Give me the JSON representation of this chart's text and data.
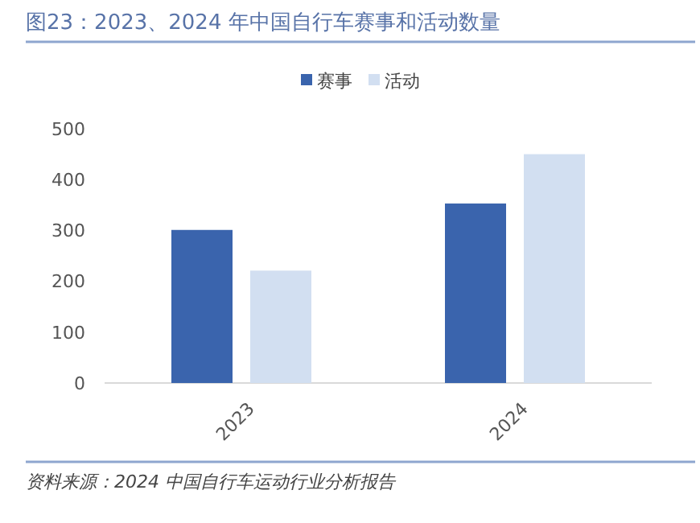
{
  "chart_data": {
    "type": "bar",
    "title": "图23：2023、2024 年中国自行车赛事和活动数量",
    "categories": [
      "2023",
      "2024"
    ],
    "series": [
      {
        "name": "赛事",
        "color": "#3a64ad",
        "values": [
          301,
          353
        ]
      },
      {
        "name": "活动",
        "color": "#d2dff1",
        "values": [
          221,
          450
        ]
      }
    ],
    "ylim": [
      0,
      500
    ],
    "yticks": [
      0,
      100,
      200,
      300,
      400,
      500
    ],
    "grid": false,
    "legend": "top",
    "annotations": [
      "资料来源：2024 中国自行车运动行业分析报告"
    ]
  }
}
